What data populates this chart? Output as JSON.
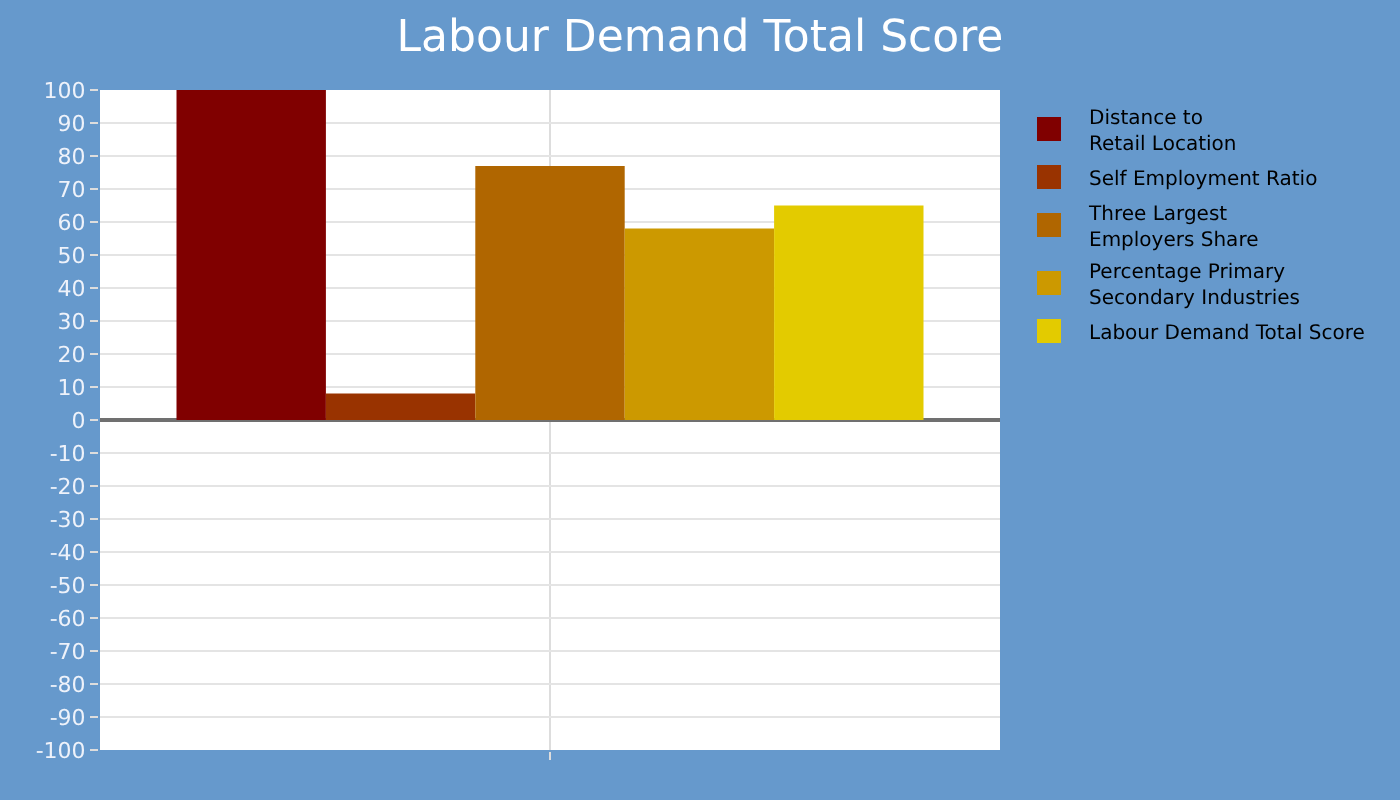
{
  "chart_data": {
    "type": "bar",
    "title": "Labour Demand Total Score",
    "categories": [
      null
    ],
    "series": [
      {
        "name": "Distance to\nRetail Location",
        "color": "#800000",
        "values": [
          100
        ]
      },
      {
        "name": "Self Employment Ratio",
        "color": "#993300",
        "values": [
          8
        ]
      },
      {
        "name": "Three Largest\nEmployers Share",
        "color": "#b06600",
        "values": [
          77
        ]
      },
      {
        "name": "Percentage Primary\nSecondary Industries",
        "color": "#cc9900",
        "values": [
          58
        ]
      },
      {
        "name": "Labour Demand Total Score",
        "color": "#e3cb00",
        "values": [
          65
        ]
      }
    ],
    "ylim": [
      -100,
      100
    ],
    "yticks": [
      -100,
      -90,
      -80,
      -70,
      -60,
      -50,
      -40,
      -30,
      -20,
      -10,
      0,
      10,
      20,
      30,
      40,
      50,
      60,
      70,
      80,
      90,
      100
    ],
    "grid": true,
    "legend": "right"
  }
}
